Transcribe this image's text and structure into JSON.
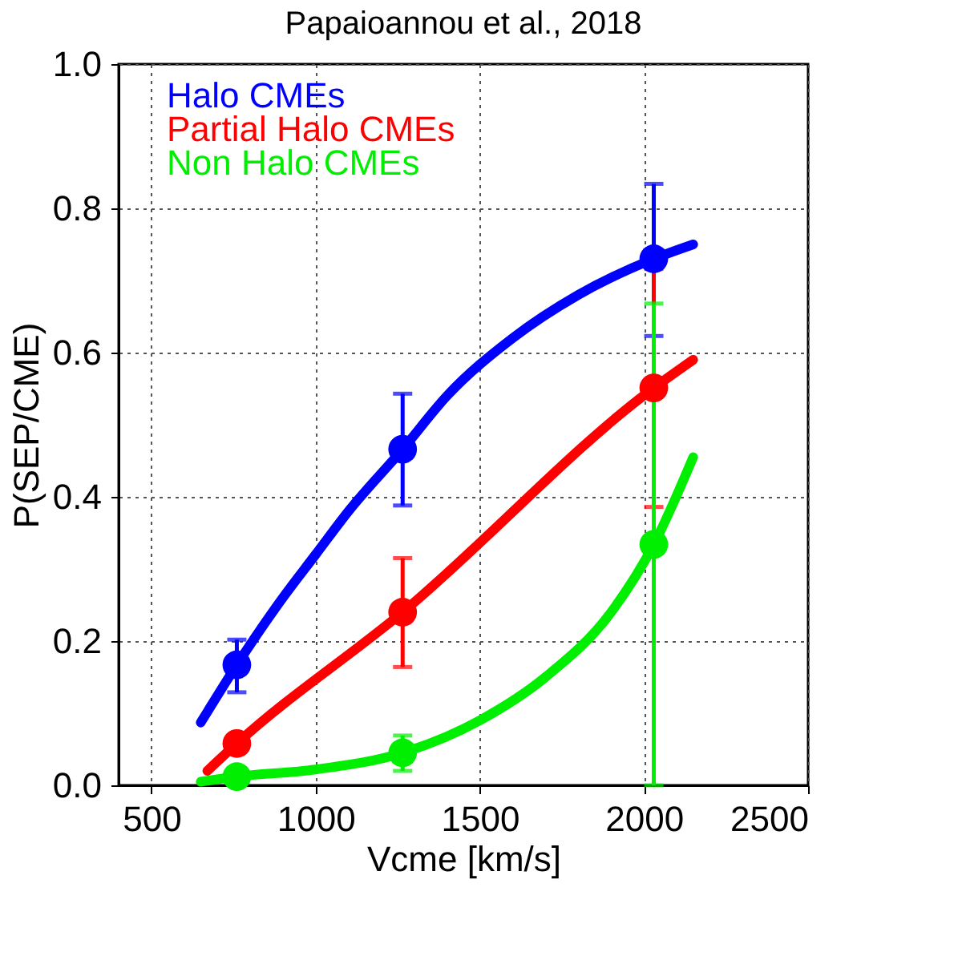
{
  "chart_data": {
    "type": "scatter",
    "title": "Papaioannou et al., 2018",
    "xlabel": "Vcme [km/s]",
    "ylabel": "P(SEP/CME)",
    "xlim": [
      400,
      2500
    ],
    "xticks": [
      500,
      1000,
      1500,
      2000,
      2500
    ],
    "ylim": [
      0,
      1
    ],
    "yticks": [
      {
        "value": 0,
        "label": "0.0"
      },
      0.2,
      0.4,
      0.6,
      0.8,
      {
        "value": 1,
        "label": "1.0"
      }
    ],
    "grid": true,
    "legend": "top left",
    "marker": "circle",
    "series": [
      {
        "name": "Halo CMEs",
        "color": "#0000ff",
        "x": [
          760,
          1265,
          2030
        ],
        "values": [
          0.167,
          0.466,
          0.73
        ],
        "errors": [
          [
            0.129,
            0.202
          ],
          [
            0.388,
            0.543
          ],
          [
            0.623,
            0.834
          ]
        ]
      },
      {
        "name": "Partial Halo CMEs",
        "color": "#ff0000",
        "x": [
          760,
          1265,
          2030
        ],
        "values": [
          0.058,
          0.24,
          0.551
        ],
        "errors": [
          null,
          [
            0.164,
            0.315
          ],
          [
            0.386,
            0.716
          ]
        ]
      },
      {
        "name": "Non Halo CMEs",
        "color": "#00ee00",
        "x": [
          760,
          1265,
          2030
        ],
        "values": [
          0.012,
          0.045,
          0.334
        ],
        "errors": [
          null,
          [
            0.02,
            0.069
          ],
          [
            0.0,
            0.668
          ]
        ]
      },
      {
        "color": "#0000ff",
        "type": "line",
        "marker": "none",
        "x": [
          650,
          760,
          900,
          1000,
          1100,
          1265,
          1400,
          1600,
          1800,
          2030,
          2150
        ],
        "values": [
          0.087,
          0.167,
          0.26,
          0.32,
          0.38,
          0.466,
          0.54,
          0.62,
          0.68,
          0.73,
          0.75
        ]
      },
      {
        "color": "#ff0000",
        "type": "line",
        "marker": "none",
        "x": [
          670,
          760,
          1265,
          2030,
          2150
        ],
        "values": [
          0.02,
          0.058,
          0.24,
          0.551,
          0.59
        ]
      },
      {
        "color": "#00ee00",
        "type": "line",
        "marker": "none",
        "x": [
          650,
          760,
          1000,
          1265,
          1500,
          1700,
          1900,
          2030,
          2150
        ],
        "values": [
          0.005,
          0.012,
          0.022,
          0.045,
          0.09,
          0.15,
          0.24,
          0.334,
          0.455
        ]
      }
    ]
  }
}
